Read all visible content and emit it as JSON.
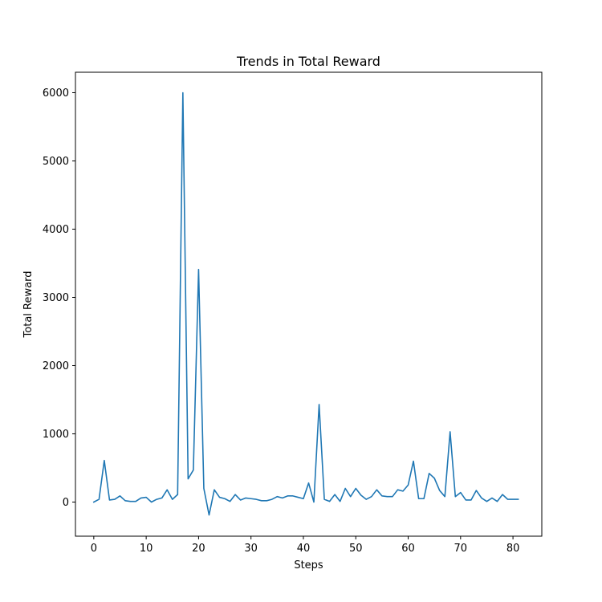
{
  "chart_data": {
    "type": "line",
    "title": "Trends in Total Reward",
    "xlabel": "Steps",
    "ylabel": "Total Reward",
    "xlim": [
      -3.5,
      85.5
    ],
    "ylim": [
      -500,
      6300
    ],
    "xticks": [
      0,
      10,
      20,
      30,
      40,
      50,
      60,
      70,
      80
    ],
    "yticks": [
      0,
      1000,
      2000,
      3000,
      4000,
      5000,
      6000
    ],
    "grid": false,
    "legend": "none",
    "line_color": "#1f77b4",
    "series": [
      {
        "x": [
          0,
          1,
          2,
          3,
          4,
          5,
          6,
          7,
          8,
          9,
          10,
          11,
          12,
          13,
          14,
          15,
          16,
          17,
          18,
          19,
          20,
          21,
          22,
          23,
          24,
          25,
          26,
          27,
          28,
          29,
          30,
          31,
          32,
          33,
          34,
          35,
          36,
          37,
          38,
          39,
          40,
          41,
          42,
          43,
          44,
          45,
          46,
          47,
          48,
          49,
          50,
          51,
          52,
          53,
          54,
          55,
          56,
          57,
          58,
          59,
          60,
          61,
          62,
          63,
          64,
          65,
          66,
          67,
          68,
          69,
          70,
          71,
          72,
          73,
          74,
          75,
          76,
          77,
          78,
          79,
          80,
          81
        ],
        "values": [
          0,
          40,
          610,
          30,
          40,
          90,
          20,
          10,
          10,
          60,
          70,
          0,
          40,
          60,
          180,
          40,
          110,
          6000,
          340,
          470,
          3410,
          200,
          -190,
          180,
          70,
          50,
          10,
          110,
          30,
          60,
          50,
          40,
          20,
          20,
          40,
          80,
          60,
          90,
          90,
          70,
          50,
          280,
          0,
          1430,
          40,
          10,
          110,
          10,
          200,
          80,
          200,
          100,
          40,
          80,
          180,
          90,
          80,
          80,
          180,
          160,
          250,
          600,
          50,
          50,
          420,
          350,
          170,
          80,
          1030,
          80,
          140,
          30,
          30,
          170,
          60,
          10,
          60,
          10,
          110,
          40,
          40,
          40
        ]
      }
    ]
  }
}
